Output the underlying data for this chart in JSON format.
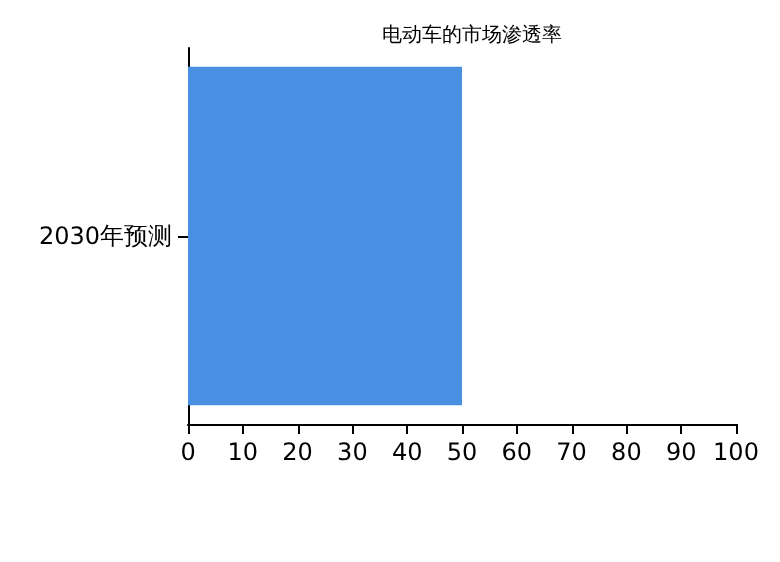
{
  "chart_data": {
    "type": "bar",
    "orientation": "horizontal",
    "title": "电动车的市场渗透率",
    "categories": [
      "2030年预测"
    ],
    "values": [
      50
    ],
    "color": "#4a90e2",
    "xlim": [
      0,
      100
    ],
    "xticks": [
      0,
      10,
      20,
      30,
      40,
      50,
      60,
      70,
      80,
      90,
      100
    ],
    "grid": false
  }
}
